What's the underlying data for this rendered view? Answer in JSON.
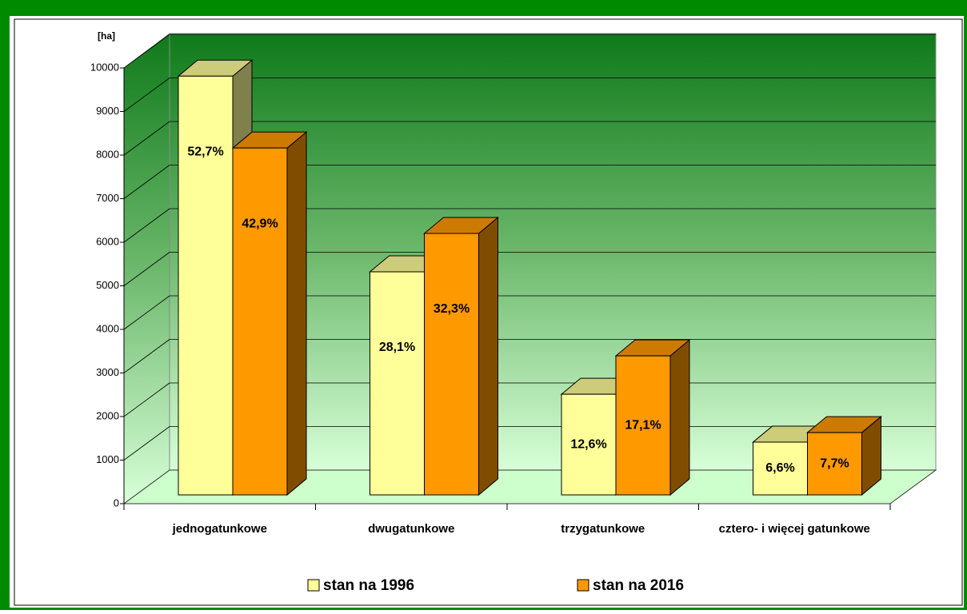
{
  "chart_data": {
    "type": "bar3d",
    "y_label": "[ha]",
    "categories": [
      "jednogatunkowe",
      "dwugatunkowe",
      "trzygatunkowe",
      "cztero- i więcej gatunkowe"
    ],
    "series": [
      {
        "name": "stan na 1996",
        "color": "#ffff99",
        "values": [
          9610,
          5120,
          2310,
          1210
        ],
        "shares": [
          52.7,
          28.1,
          12.6,
          6.6
        ],
        "share_labels": [
          "52,7%",
          "28,1%",
          "12,6%",
          "6,6%"
        ]
      },
      {
        "name": "stan na 2016",
        "color": "#ff9900",
        "values": [
          7960,
          6000,
          3190,
          1430
        ],
        "shares": [
          42.9,
          32.3,
          17.1,
          7.7
        ],
        "share_labels": [
          "42,9%",
          "32,3%",
          "17,1%",
          "7,7%"
        ]
      }
    ],
    "ylim": [
      0,
      10000
    ],
    "yticks": [
      0,
      1000,
      2000,
      3000,
      4000,
      5000,
      6000,
      7000,
      8000,
      9000,
      10000
    ],
    "grid": true,
    "legend": "bottom"
  }
}
